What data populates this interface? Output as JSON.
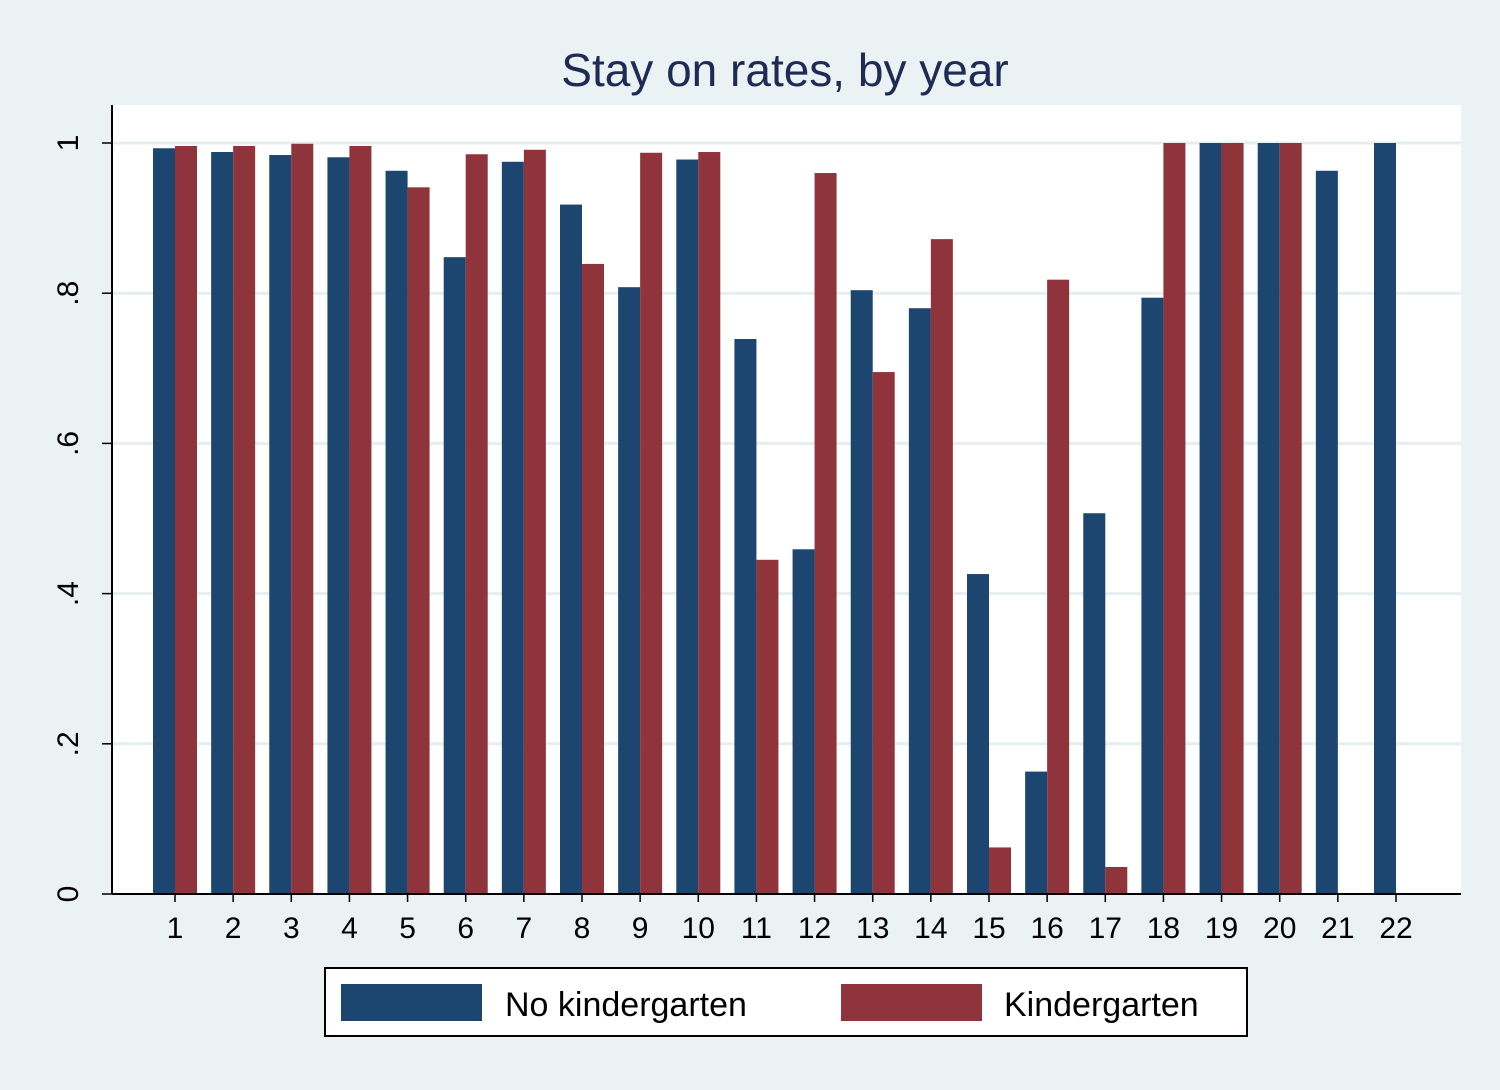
{
  "chart_data": {
    "type": "bar",
    "title": "Stay on rates, by year",
    "xlabel": "",
    "ylabel": "",
    "ylim": [
      0,
      1.0
    ],
    "yticks": [
      0,
      0.2,
      0.4,
      0.6,
      0.8,
      1.0
    ],
    "ytick_labels": [
      "0",
      ".2",
      ".4",
      ".6",
      ".8",
      "1"
    ],
    "categories": [
      "1",
      "2",
      "3",
      "4",
      "5",
      "6",
      "7",
      "8",
      "9",
      "10",
      "11",
      "12",
      "13",
      "14",
      "15",
      "16",
      "17",
      "18",
      "19",
      "20",
      "21",
      "22"
    ],
    "series": [
      {
        "name": "No kindergarten",
        "color": "#1c4570",
        "values": [
          0.993,
          0.988,
          0.984,
          0.981,
          0.963,
          0.848,
          0.975,
          0.918,
          0.808,
          0.978,
          0.739,
          0.459,
          0.804,
          0.78,
          0.426,
          0.163,
          0.507,
          0.794,
          1.0,
          1.0,
          0.963,
          1.0
        ]
      },
      {
        "name": "Kindergarten",
        "color": "#8f343b",
        "values": [
          0.996,
          0.996,
          0.999,
          0.996,
          0.941,
          0.985,
          0.991,
          0.839,
          0.987,
          0.988,
          0.445,
          0.96,
          0.695,
          0.872,
          0.062,
          0.818,
          0.036,
          1.0,
          1.0,
          1.0,
          null,
          null
        ]
      }
    ],
    "grid": true,
    "legend_position": "bottom",
    "colors": {
      "background": "#eaf2f3",
      "plot_background": "#ffffff",
      "gridline": "#e5eef0",
      "title": "#1e2b55"
    }
  }
}
